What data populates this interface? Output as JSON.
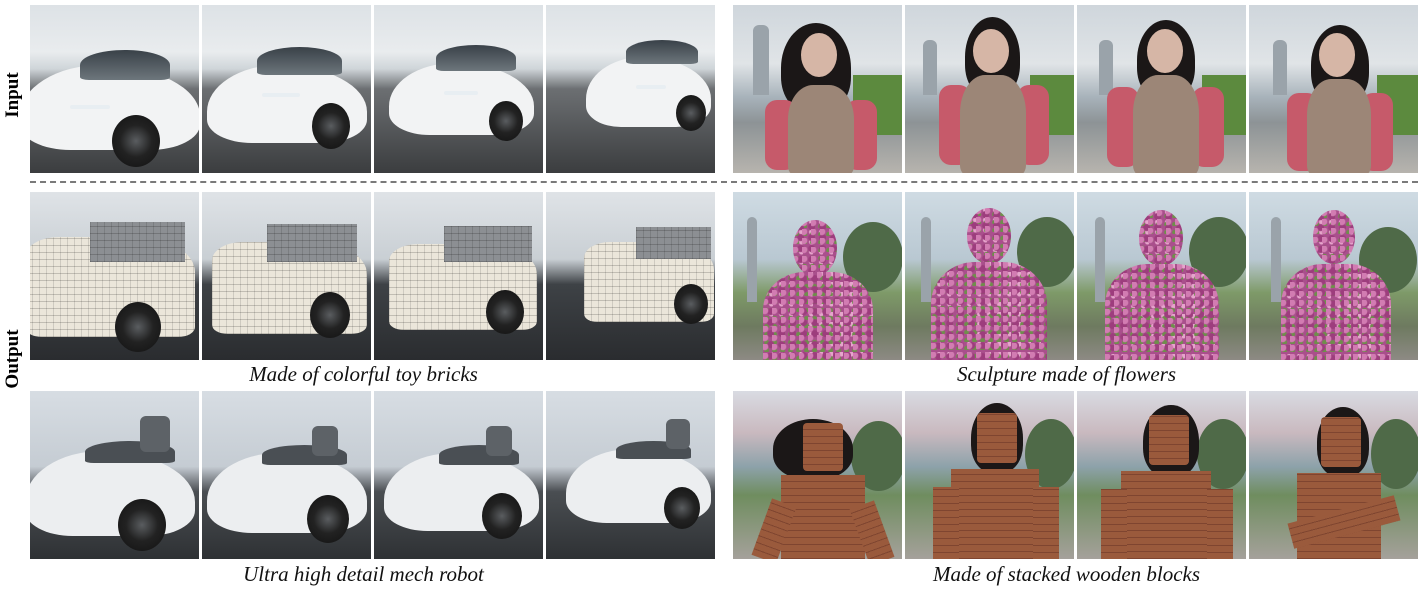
{
  "row_labels": {
    "input": "Input",
    "output": "Output"
  },
  "captions": {
    "car_bricks": "Made of colorful toy bricks",
    "girl_flowers": "Sculpture made of flowers",
    "car_mech": "Ultra high detail mech robot",
    "girl_wood": "Made of stacked wooden blocks"
  },
  "colors": {
    "car_white": "#f1f2f3",
    "jacket_red": "#c65a6a",
    "vest_brown": "#9c8677",
    "divider": "#7a7a7a"
  },
  "frames_per_strip": 4
}
